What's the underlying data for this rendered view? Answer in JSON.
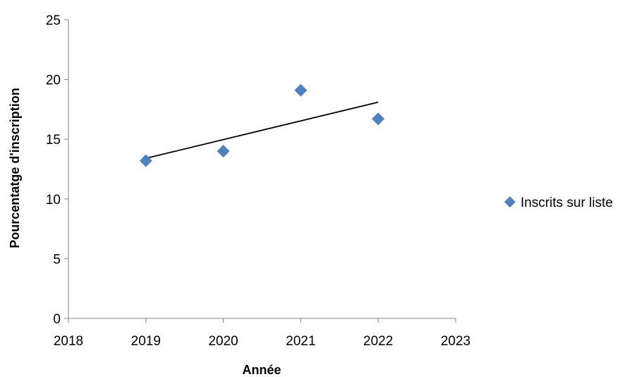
{
  "chart_data": {
    "type": "scatter",
    "title": "",
    "xlabel": "Année",
    "ylabel": "Pourcentatge d'inscription",
    "xlim": [
      2018,
      2023
    ],
    "ylim": [
      0,
      25
    ],
    "xticks": [
      "2018",
      "2019",
      "2020",
      "2021",
      "2022",
      "2023"
    ],
    "yticks": [
      "0",
      "5",
      "10",
      "15",
      "20",
      "25"
    ],
    "grid": false,
    "legend_position": "right",
    "series": [
      {
        "name": "Inscrits sur liste",
        "marker": "diamond",
        "color": "#4F81BD",
        "x": [
          2019,
          2020,
          2021,
          2022
        ],
        "y": [
          13.2,
          14.0,
          19.1,
          16.7
        ]
      }
    ],
    "trendline": {
      "type": "linear",
      "color": "#000000",
      "x": [
        2019,
        2022
      ],
      "y": [
        13.4,
        18.1
      ]
    }
  }
}
